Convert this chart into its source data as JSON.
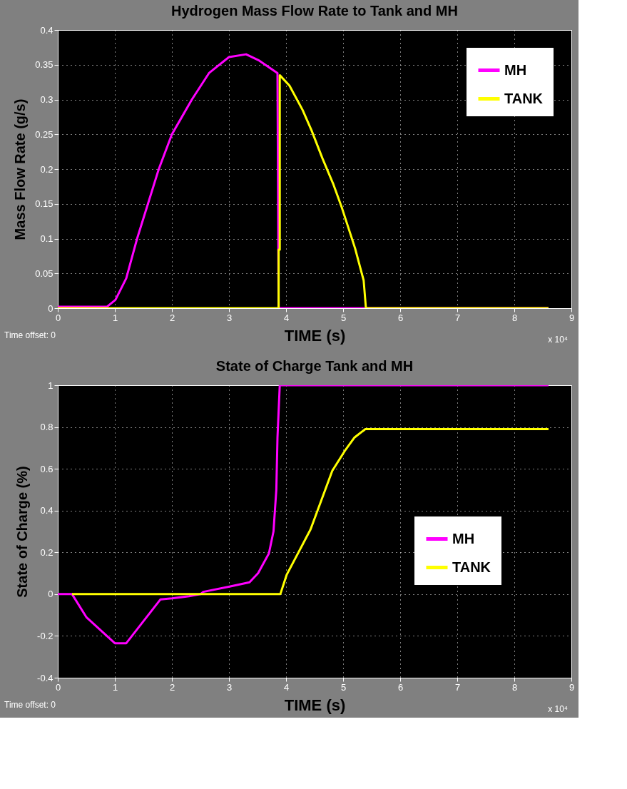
{
  "chart_data": [
    {
      "type": "line",
      "title": "Hydrogen Mass Flow Rate to Tank and MH",
      "xlabel": "TIME (s)",
      "ylabel": "Mass Flow Rate (g/s)",
      "xlim": [
        0,
        9
      ],
      "xticks": [
        0,
        1,
        2,
        3,
        4,
        5,
        6,
        7,
        8,
        9
      ],
      "ylim": [
        0,
        0.4
      ],
      "yticks": [
        0,
        0.05,
        0.1,
        0.15,
        0.2,
        0.25,
        0.3,
        0.35,
        0.4
      ],
      "grid": true,
      "legend": "top right",
      "line_style": "solid",
      "marker": "none",
      "annotations": [
        "Time offset:  0",
        "x 10⁴"
      ],
      "series": [
        {
          "name": "MH",
          "color": "#ff00ff",
          "x": [
            0,
            0.86,
            1.01,
            1.2,
            1.39,
            1.58,
            1.77,
            2.0,
            2.35,
            2.65,
            3.0,
            3.3,
            3.53,
            3.85,
            3.87,
            8.6
          ],
          "values": [
            0.002,
            0.002,
            0.012,
            0.043,
            0.1,
            0.15,
            0.2,
            0.25,
            0.3,
            0.338,
            0.361,
            0.365,
            0.356,
            0.338,
            0,
            0
          ]
        },
        {
          "name": "TANK",
          "color": "#ffff00",
          "x": [
            0,
            3.87,
            3.87,
            3.89,
            3.89,
            4.06,
            4.29,
            4.45,
            4.64,
            4.83,
            4.98,
            5.21,
            5.36,
            5.4,
            8.6
          ],
          "values": [
            0,
            0,
            0.084,
            0.084,
            0.335,
            0.32,
            0.285,
            0.255,
            0.215,
            0.178,
            0.144,
            0.086,
            0.04,
            0,
            0
          ]
        }
      ]
    },
    {
      "type": "line",
      "title": "State of Charge Tank and MH",
      "xlabel": "TIME (s)",
      "ylabel": "State of Charge (%)",
      "xlim": [
        0,
        9
      ],
      "xticks": [
        0,
        1,
        2,
        3,
        4,
        5,
        6,
        7,
        8,
        9
      ],
      "ylim": [
        -0.4,
        1
      ],
      "yticks": [
        -0.4,
        -0.2,
        0,
        0.2,
        0.4,
        0.6,
        0.8,
        1
      ],
      "grid": true,
      "legend": "right",
      "line_style": "solid",
      "marker": "none",
      "annotations": [
        "Time offset:  0",
        "x 10⁴"
      ],
      "series": [
        {
          "name": "MH",
          "color": "#ff00ff",
          "x": [
            0,
            0.25,
            0.5,
            1.0,
            1.2,
            1.5,
            1.8,
            2.0,
            2.3,
            2.5,
            2.55,
            3.01,
            3.36,
            3.51,
            3.7,
            3.78,
            3.83,
            3.85,
            3.89,
            8.6
          ],
          "values": [
            0,
            0,
            -0.11,
            -0.235,
            -0.235,
            -0.13,
            -0.025,
            -0.02,
            -0.01,
            0,
            0.011,
            0.036,
            0.057,
            0.1,
            0.195,
            0.3,
            0.5,
            0.75,
            1,
            1
          ]
        },
        {
          "name": "TANK",
          "color": "#ffff00",
          "x": [
            0.25,
            3.9,
            4.01,
            4.43,
            4.81,
            5.04,
            5.2,
            5.39,
            8.6
          ],
          "values": [
            0,
            0,
            0.092,
            0.31,
            0.59,
            0.69,
            0.75,
            0.79,
            0.79
          ]
        }
      ]
    }
  ]
}
